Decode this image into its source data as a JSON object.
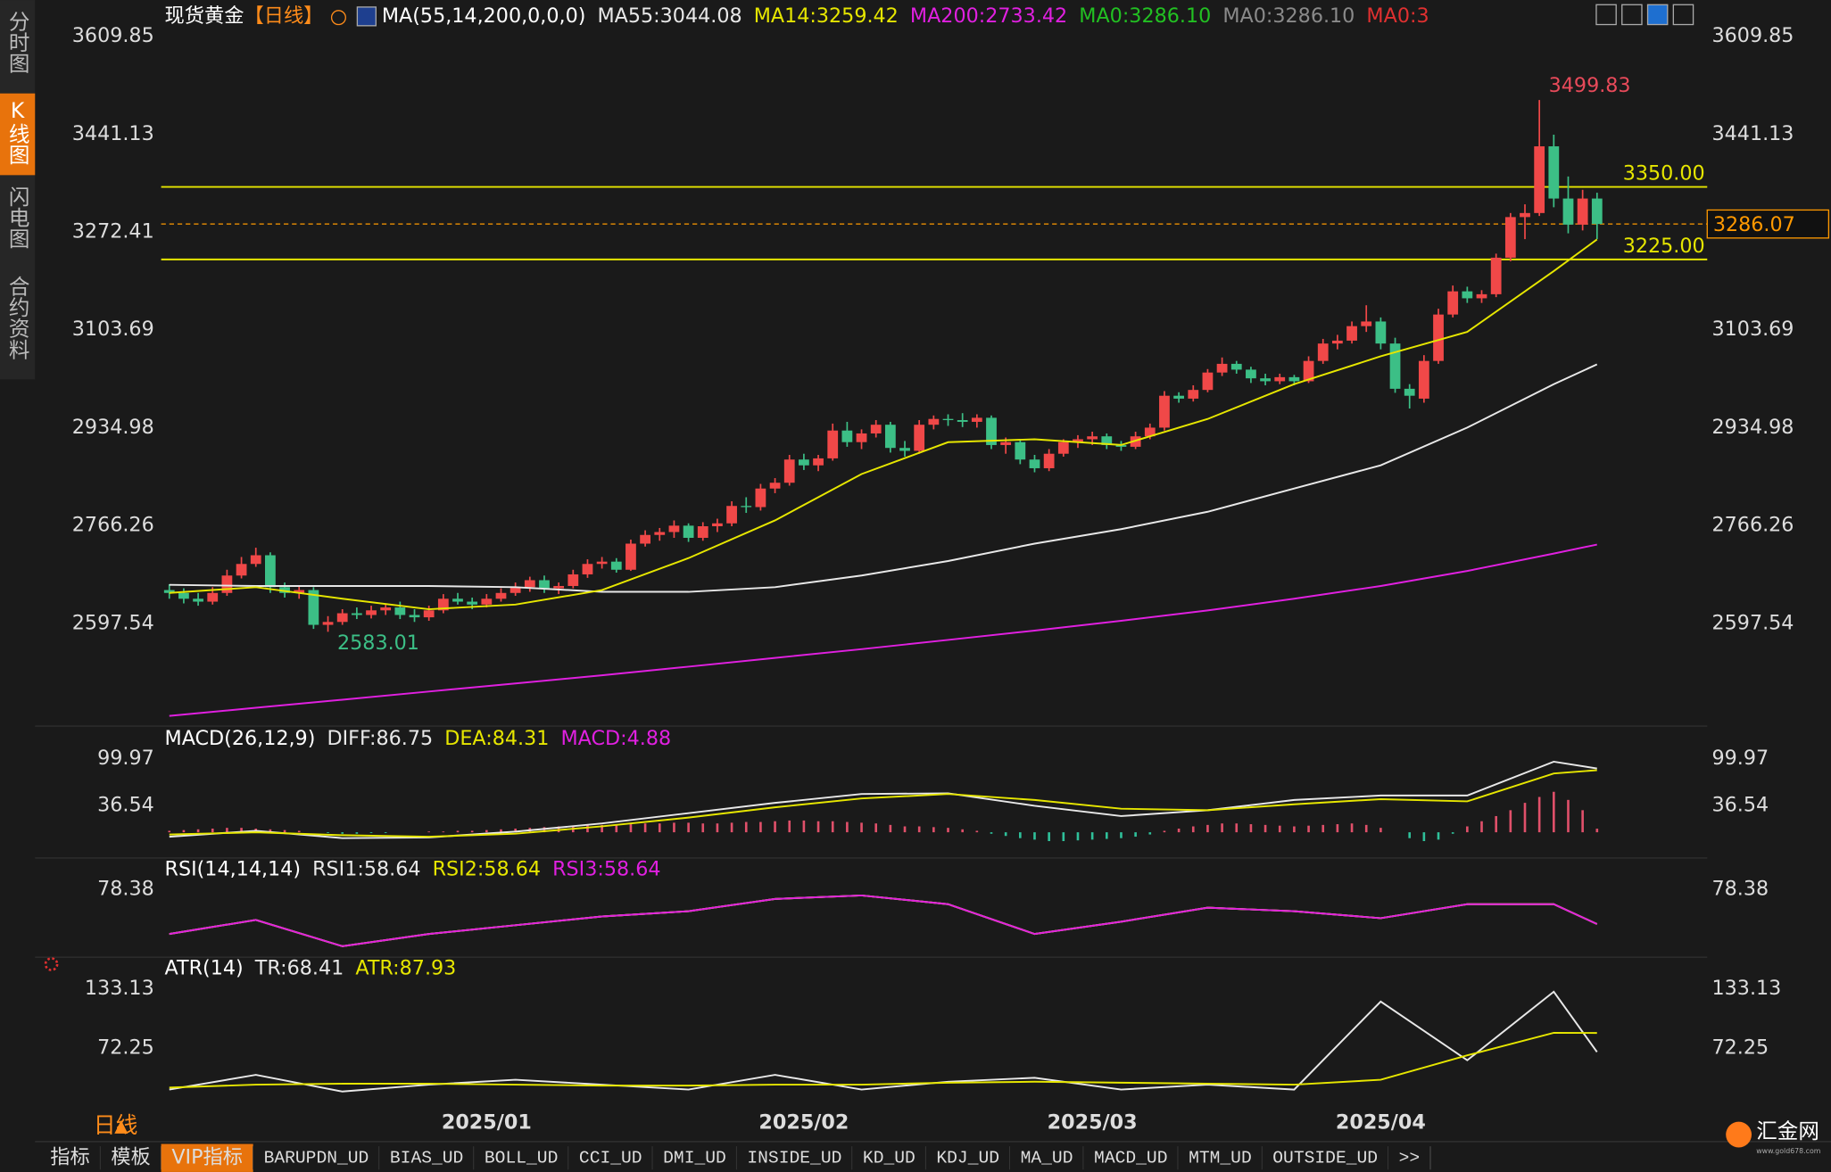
{
  "sidebar_tabs": [
    "分时图",
    "K线图",
    "闪电图",
    "合约资料"
  ],
  "timeframe": "日线",
  "bottom_tabs": [
    "指标",
    "模板",
    "VIP指标",
    "BARUPDN_UD",
    "BIAS_UD",
    "BOLL_UD",
    "CCI_UD",
    "DMI_UD",
    "INSIDE_UD",
    "KD_UD",
    "KDJ_UD",
    "MA_UD",
    "MACD_UD",
    "MTM_UD",
    "OUTSIDE_UD",
    ">>"
  ],
  "logo": "汇金网",
  "logo_url": "www.gold678.com",
  "chart_data": [
    {
      "type": "candlestick",
      "title": "现货黄金",
      "period": "【日线】",
      "indicator": "MA(55,14,200,0,0,0)",
      "categories": [
        null,
        null,
        null,
        null,
        null,
        null,
        null,
        null,
        null,
        null,
        null,
        null,
        null,
        null,
        null,
        null,
        null,
        null,
        null,
        null,
        null,
        null,
        "2025/01",
        null,
        null,
        null,
        null,
        null,
        null,
        null,
        null,
        null,
        null,
        null,
        null,
        null,
        null,
        null,
        null,
        null,
        null,
        null,
        null,
        null,
        "2025/02",
        null,
        null,
        null,
        null,
        null,
        null,
        null,
        null,
        null,
        null,
        null,
        null,
        null,
        null,
        null,
        null,
        null,
        null,
        null,
        "2025/03",
        null,
        null,
        null,
        null,
        null,
        null,
        null,
        null,
        null,
        null,
        null,
        null,
        null,
        null,
        null,
        null,
        null,
        null,
        null,
        "2025/04",
        null,
        null,
        null,
        null,
        null,
        null,
        null,
        null,
        null,
        null,
        null,
        null,
        null,
        null,
        null
      ],
      "ohlc": [
        [
          2655,
          2665,
          2640,
          2650
        ],
        [
          2650,
          2658,
          2632,
          2640
        ],
        [
          2640,
          2650,
          2628,
          2635
        ],
        [
          2635,
          2660,
          2630,
          2650
        ],
        [
          2650,
          2690,
          2645,
          2680
        ],
        [
          2680,
          2712,
          2675,
          2700
        ],
        [
          2700,
          2728,
          2695,
          2715
        ],
        [
          2715,
          2720,
          2650,
          2660
        ],
        [
          2660,
          2668,
          2642,
          2650
        ],
        [
          2650,
          2662,
          2640,
          2655
        ],
        [
          2655,
          2660,
          2588,
          2595
        ],
        [
          2595,
          2610,
          2583.01,
          2600
        ],
        [
          2600,
          2622,
          2595,
          2615
        ],
        [
          2615,
          2625,
          2605,
          2612
        ],
        [
          2612,
          2628,
          2606,
          2620
        ],
        [
          2620,
          2632,
          2612,
          2625
        ],
        [
          2625,
          2635,
          2605,
          2612
        ],
        [
          2612,
          2622,
          2600,
          2608
        ],
        [
          2608,
          2628,
          2602,
          2620
        ],
        [
          2620,
          2648,
          2615,
          2640
        ],
        [
          2640,
          2650,
          2630,
          2635
        ],
        [
          2635,
          2642,
          2622,
          2630
        ],
        [
          2630,
          2648,
          2625,
          2640
        ],
        [
          2640,
          2658,
          2635,
          2650
        ],
        [
          2650,
          2668,
          2645,
          2660
        ],
        [
          2660,
          2678,
          2652,
          2672
        ],
        [
          2672,
          2680,
          2650,
          2658
        ],
        [
          2658,
          2668,
          2648,
          2662
        ],
        [
          2662,
          2690,
          2658,
          2682
        ],
        [
          2682,
          2708,
          2676,
          2700
        ],
        [
          2700,
          2712,
          2692,
          2704
        ],
        [
          2704,
          2710,
          2685,
          2690
        ],
        [
          2690,
          2742,
          2688,
          2735
        ],
        [
          2735,
          2758,
          2730,
          2750
        ],
        [
          2750,
          2762,
          2740,
          2755
        ],
        [
          2755,
          2775,
          2745,
          2766
        ],
        [
          2766,
          2770,
          2738,
          2745
        ],
        [
          2745,
          2772,
          2740,
          2765
        ],
        [
          2765,
          2778,
          2755,
          2770
        ],
        [
          2770,
          2808,
          2765,
          2800
        ],
        [
          2800,
          2815,
          2788,
          2798
        ],
        [
          2798,
          2838,
          2792,
          2830
        ],
        [
          2830,
          2848,
          2822,
          2840
        ],
        [
          2840,
          2888,
          2835,
          2880
        ],
        [
          2880,
          2890,
          2862,
          2870
        ],
        [
          2870,
          2888,
          2860,
          2882
        ],
        [
          2882,
          2942,
          2878,
          2930
        ],
        [
          2930,
          2945,
          2902,
          2910
        ],
        [
          2910,
          2932,
          2898,
          2925
        ],
        [
          2925,
          2948,
          2918,
          2940
        ],
        [
          2940,
          2945,
          2892,
          2900
        ],
        [
          2900,
          2912,
          2885,
          2895
        ],
        [
          2895,
          2948,
          2890,
          2940
        ],
        [
          2940,
          2956,
          2932,
          2950
        ],
        [
          2950,
          2958,
          2938,
          2948
        ],
        [
          2948,
          2960,
          2936,
          2945
        ],
        [
          2945,
          2958,
          2935,
          2952
        ],
        [
          2952,
          2956,
          2898,
          2905
        ],
        [
          2905,
          2918,
          2890,
          2910
        ],
        [
          2910,
          2915,
          2872,
          2880
        ],
        [
          2880,
          2888,
          2858,
          2865
        ],
        [
          2865,
          2898,
          2860,
          2890
        ],
        [
          2890,
          2915,
          2885,
          2910
        ],
        [
          2910,
          2922,
          2900,
          2915
        ],
        [
          2915,
          2928,
          2905,
          2920
        ],
        [
          2920,
          2925,
          2898,
          2905
        ],
        [
          2905,
          2912,
          2895,
          2902
        ],
        [
          2902,
          2928,
          2898,
          2920
        ],
        [
          2920,
          2942,
          2915,
          2935
        ],
        [
          2935,
          2998,
          2930,
          2990
        ],
        [
          2990,
          2996,
          2978,
          2985
        ],
        [
          2985,
          3008,
          2980,
          3000
        ],
        [
          3000,
          3036,
          2996,
          3030
        ],
        [
          3030,
          3056,
          3024,
          3045
        ],
        [
          3045,
          3050,
          3028,
          3035
        ],
        [
          3035,
          3040,
          3012,
          3020
        ],
        [
          3020,
          3028,
          3008,
          3015
        ],
        [
          3015,
          3028,
          3010,
          3022
        ],
        [
          3022,
          3026,
          3008,
          3015
        ],
        [
          3015,
          3058,
          3012,
          3050
        ],
        [
          3050,
          3088,
          3045,
          3080
        ],
        [
          3080,
          3095,
          3070,
          3085
        ],
        [
          3085,
          3118,
          3080,
          3110
        ],
        [
          3110,
          3146,
          3100,
          3118
        ],
        [
          3118,
          3125,
          3070,
          3080
        ],
        [
          3080,
          3090,
          2995,
          3002
        ],
        [
          3002,
          3010,
          2968,
          2990
        ],
        [
          2985,
          3060,
          2978,
          3050
        ],
        [
          3050,
          3140,
          3045,
          3130
        ],
        [
          3130,
          3180,
          3125,
          3170
        ],
        [
          3170,
          3178,
          3150,
          3158
        ],
        [
          3158,
          3172,
          3150,
          3165
        ],
        [
          3165,
          3235,
          3160,
          3228
        ],
        [
          3228,
          3305,
          3222,
          3298
        ],
        [
          3298,
          3320,
          3260,
          3305
        ],
        [
          3305,
          3499.83,
          3300,
          3420
        ],
        [
          3420,
          3440,
          3315,
          3330
        ],
        [
          3330,
          3368,
          3270,
          3285
        ],
        [
          3285,
          3345,
          3275,
          3330
        ],
        [
          3330,
          3340,
          3260,
          3286.07
        ]
      ],
      "up_color": "#f04848",
      "down_color": "#3cbf86",
      "ylim": [
        2424.5,
        3621.9
      ],
      "yticks": [
        3609.85,
        3441.13,
        3272.41,
        3103.69,
        2934.98,
        2766.26,
        2597.54
      ],
      "x": [
        0,
        6,
        12,
        18,
        24,
        30,
        36,
        42,
        48,
        54,
        60,
        66,
        72,
        78,
        84,
        90,
        96,
        99
      ],
      "series": [
        {
          "name": "MA55:3044.08",
          "color": "#e8e8e8",
          "values": [
            2664,
            2662,
            2662,
            2662,
            2660,
            2652,
            2652,
            2660,
            2680,
            2705,
            2735,
            2760,
            2790,
            2830,
            2870,
            2935,
            3010,
            3044.08
          ]
        },
        {
          "name": "MA14:3259.42",
          "color": "#e6e600",
          "values": [
            2650,
            2660,
            2640,
            2622,
            2630,
            2655,
            2710,
            2775,
            2855,
            2910,
            2915,
            2905,
            2950,
            3010,
            3058,
            3100,
            3205,
            3259.42
          ]
        },
        {
          "name": "MA200:2733.42",
          "color": "#e020e0",
          "values": [
            2438,
            2452,
            2466,
            2480,
            2494,
            2508,
            2523,
            2538,
            2553,
            2569,
            2585,
            2602,
            2620,
            2640,
            2662,
            2688,
            2718,
            2733.42
          ]
        }
      ],
      "legend_extra": [
        {
          "text": "MA0:3286.10",
          "color": "#22c022"
        },
        {
          "text": "MA0:3286.10",
          "color": "#8a8a8a"
        },
        {
          "text": "MA0:3",
          "color": "#e03030"
        }
      ],
      "hlines": [
        {
          "value": 3350,
          "label": "3350.00",
          "color": "#e6e600"
        },
        {
          "value": 3225,
          "label": "3225.00",
          "color": "#e6e600"
        }
      ],
      "last_price": {
        "value": 3286.07,
        "label": "3286.07",
        "color": "#ff9900"
      },
      "annotations": {
        "high_label": "3499.83",
        "high_color": "#e84a5a",
        "low_label": "2583.01",
        "low_color": "#3cbf86"
      }
    },
    {
      "type": "macd",
      "title": "MACD(26,12,9)",
      "x": [
        0,
        6,
        12,
        18,
        24,
        30,
        36,
        42,
        48,
        54,
        60,
        66,
        72,
        78,
        84,
        90,
        96,
        99
      ],
      "series": [
        {
          "name": "DIFF:86.75",
          "color": "#e8e8e8",
          "values": [
            -6,
            2,
            -8,
            -7,
            1,
            12,
            26,
            40,
            52,
            53,
            36,
            22,
            30,
            44,
            50,
            50,
            96,
            86.75
          ]
        },
        {
          "name": "DEA:84.31",
          "color": "#e6e600",
          "values": [
            -3,
            0,
            -4,
            -6,
            -2,
            8,
            20,
            34,
            46,
            52,
            44,
            32,
            30,
            38,
            45,
            42,
            80,
            84.31
          ]
        }
      ],
      "histogram": {
        "name": "MACD:4.88",
        "color": "#e020e0",
        "up_color": "#e0506a",
        "down_color": "#2fc09a",
        "values": [
          2,
          3,
          4,
          5,
          6,
          6,
          5,
          4,
          3,
          2,
          0,
          -1,
          -2,
          -2,
          -1,
          -1,
          0,
          0,
          1,
          1,
          2,
          2,
          3,
          4,
          5,
          6,
          7,
          8,
          9,
          10,
          10,
          10,
          11,
          12,
          12,
          13,
          13,
          12,
          12,
          13,
          14,
          14,
          15,
          16,
          16,
          15,
          15,
          14,
          13,
          12,
          10,
          8,
          8,
          7,
          6,
          4,
          2,
          -2,
          -5,
          -8,
          -10,
          -12,
          -12,
          -11,
          -10,
          -9,
          -8,
          -6,
          -3,
          2,
          5,
          8,
          10,
          12,
          12,
          11,
          10,
          9,
          8,
          9,
          10,
          11,
          12,
          10,
          6,
          0,
          -8,
          -12,
          -10,
          -2,
          8,
          15,
          22,
          30,
          40,
          48,
          55,
          44,
          30,
          4.88
        ]
      },
      "ylim": [
        -27,
        139.6
      ],
      "yticks": [
        99.97,
        36.54
      ]
    },
    {
      "type": "line",
      "title": "RSI(14,14,14)",
      "x": [
        0,
        6,
        12,
        18,
        24,
        30,
        36,
        42,
        48,
        54,
        60,
        66,
        72,
        78,
        84,
        90,
        96,
        99
      ],
      "series": [
        {
          "name": "RSI1:58.64",
          "color": "#e8e8e8",
          "values": [
            53,
            61,
            46,
            53,
            58,
            63,
            66,
            73,
            75,
            70,
            53,
            60,
            68,
            66,
            62,
            70,
            70,
            58.64
          ]
        },
        {
          "name": "RSI2:58.64",
          "color": "#e6e600",
          "values": [
            53,
            61,
            46,
            53,
            58,
            63,
            66,
            73,
            75,
            70,
            53,
            60,
            68,
            66,
            62,
            70,
            70,
            58.64
          ]
        },
        {
          "name": "RSI3:58.64",
          "color": "#e020e0",
          "values": [
            53,
            61,
            46,
            53,
            58,
            63,
            66,
            73,
            75,
            70,
            53,
            60,
            68,
            66,
            62,
            70,
            70,
            58.64
          ]
        }
      ],
      "ylim": [
        41.05,
        93.05
      ],
      "yticks": [
        78.38
      ]
    },
    {
      "type": "line",
      "title": "ATR(14)",
      "x": [
        0,
        6,
        12,
        18,
        24,
        30,
        36,
        42,
        48,
        54,
        60,
        66,
        72,
        78,
        84,
        90,
        96,
        99
      ],
      "series": [
        {
          "name": "TR:68.41",
          "color": "#e8e8e8",
          "values": [
            30,
            45,
            28,
            35,
            40,
            35,
            30,
            45,
            30,
            38,
            42,
            30,
            35,
            30,
            120,
            60,
            130,
            68.41
          ]
        },
        {
          "name": "ATR:87.93",
          "color": "#e6e600",
          "values": [
            32,
            35,
            36,
            36,
            35,
            34,
            34,
            35,
            35,
            37,
            38,
            37,
            36,
            35,
            40,
            65,
            88,
            87.93
          ]
        }
      ],
      "ylim": [
        4.2,
        159.4
      ],
      "yticks": [
        133.13,
        72.25
      ]
    }
  ]
}
